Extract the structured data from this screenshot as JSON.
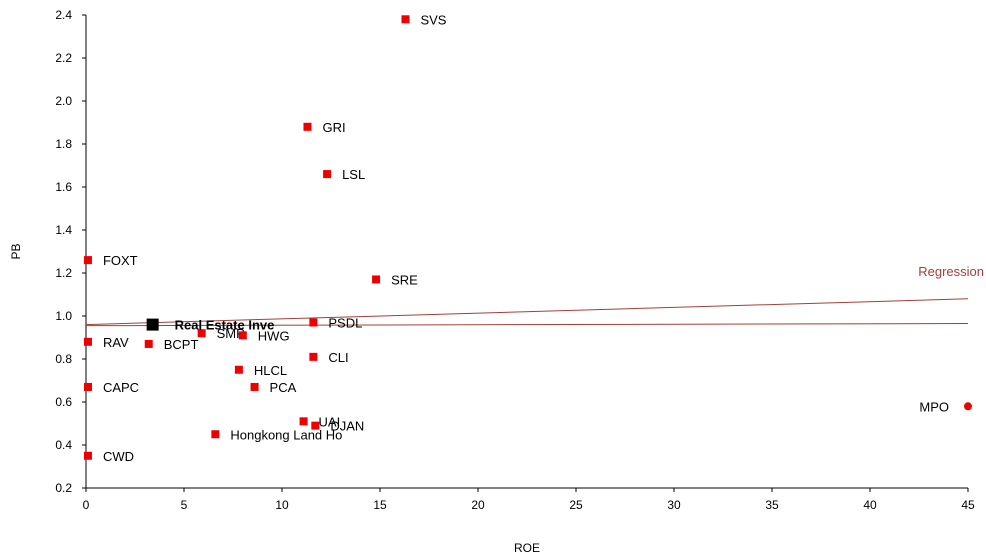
{
  "chart_data": {
    "type": "scatter",
    "title": "",
    "xlabel": "ROE",
    "ylabel": "PB",
    "xlim": [
      0,
      45
    ],
    "ylim": [
      0.2,
      2.4
    ],
    "xticks": [
      0,
      5,
      10,
      15,
      20,
      25,
      30,
      35,
      40,
      45
    ],
    "yticks": [
      0.2,
      0.4,
      0.6,
      0.8,
      1.0,
      1.2,
      1.4,
      1.6,
      1.8,
      2.0,
      2.2,
      2.4
    ],
    "ytick_labels": [
      "0.2",
      "0.4",
      "0.6",
      "0.8",
      "1.0",
      "1.2",
      "1.4",
      "1.6",
      "1.8",
      "2.0",
      "2.2",
      "2.4"
    ],
    "grid": false,
    "points": [
      {
        "label": "SVS",
        "x": 16.3,
        "y": 2.38
      },
      {
        "label": "GRI",
        "x": 11.3,
        "y": 1.88
      },
      {
        "label": "LSL",
        "x": 12.3,
        "y": 1.66
      },
      {
        "label": "FOXT",
        "x": 0.1,
        "y": 1.26
      },
      {
        "label": "SRE",
        "x": 14.8,
        "y": 1.17
      },
      {
        "label": "PSDL",
        "x": 11.6,
        "y": 0.97
      },
      {
        "label": "SMP",
        "x": 5.9,
        "y": 0.92
      },
      {
        "label": "HWG",
        "x": 8.0,
        "y": 0.91
      },
      {
        "label": "RAV",
        "x": 0.1,
        "y": 0.88
      },
      {
        "label": "BCPT",
        "x": 3.2,
        "y": 0.87
      },
      {
        "label": "CLI",
        "x": 11.6,
        "y": 0.81
      },
      {
        "label": "HLCL",
        "x": 7.8,
        "y": 0.75
      },
      {
        "label": "CAPC",
        "x": 0.1,
        "y": 0.67
      },
      {
        "label": "PCA",
        "x": 8.6,
        "y": 0.67
      },
      {
        "label": "UAI",
        "x": 11.1,
        "y": 0.51
      },
      {
        "label": "DJAN",
        "x": 11.7,
        "y": 0.49
      },
      {
        "label": "Hongkong Land Ho",
        "x": 6.6,
        "y": 0.45
      },
      {
        "label": "CWD",
        "x": 0.1,
        "y": 0.35
      }
    ],
    "highlight": {
      "label": "Real Estate Inve",
      "x": 3.4,
      "y": 0.96
    },
    "outlier": {
      "label": "MPO",
      "x": 45,
      "y": 0.58
    },
    "regression": {
      "label": "Regression",
      "line1": {
        "x": [
          0,
          45
        ],
        "y": [
          0.96,
          1.08
        ]
      },
      "line2": {
        "x": [
          0,
          45
        ],
        "y": [
          0.955,
          0.965
        ]
      }
    },
    "colors": {
      "point": "#ee0000",
      "highlight": "#000000",
      "regression": "#a0403a",
      "axis": "#000000"
    }
  }
}
